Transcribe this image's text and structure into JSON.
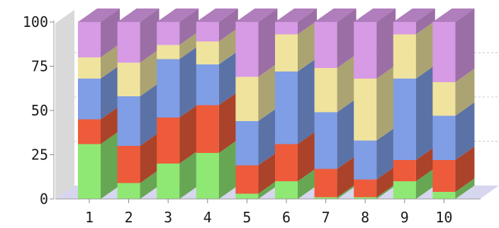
{
  "chart_data": {
    "type": "bar",
    "stacked": true,
    "style": "3d",
    "categories": [
      "1",
      "2",
      "3",
      "4",
      "5",
      "6",
      "7",
      "8",
      "9",
      "10"
    ],
    "ylim": [
      0,
      100
    ],
    "yticks": [
      "0",
      "25",
      "50",
      "75",
      "100"
    ],
    "grid": true,
    "series": [
      {
        "color": "#8fe873",
        "values": [
          31,
          9,
          20,
          26,
          3,
          10,
          1,
          1,
          10,
          4
        ]
      },
      {
        "color": "#ee5b3a",
        "values": [
          14,
          21,
          26,
          27,
          16,
          21,
          16,
          10,
          12,
          18
        ]
      },
      {
        "color": "#7f9ee6",
        "values": [
          23,
          28,
          33,
          23,
          25,
          41,
          32,
          22,
          46,
          25
        ]
      },
      {
        "color": "#efe39e",
        "values": [
          12,
          19,
          8,
          13,
          25,
          21,
          25,
          35,
          25,
          19
        ]
      },
      {
        "color": "#d79ae5",
        "values": [
          20,
          23,
          13,
          11,
          31,
          7,
          26,
          32,
          7,
          34
        ]
      }
    ]
  }
}
